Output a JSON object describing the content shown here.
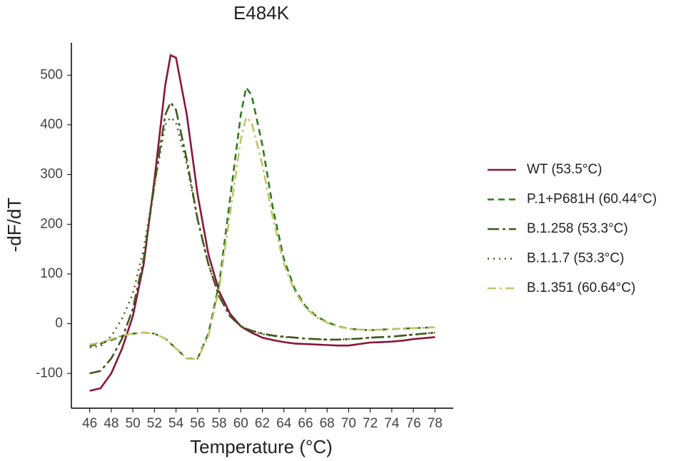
{
  "chart_data": {
    "type": "line",
    "title": "E484K",
    "x_label": "Temperature (°C)",
    "y_label": "-dF/dT",
    "xlim": [
      44.3,
      79.7
    ],
    "ylim": [
      -170,
      565
    ],
    "xticks": [
      46,
      48,
      50,
      52,
      54,
      56,
      58,
      60,
      62,
      64,
      66,
      68,
      70,
      72,
      74,
      76,
      78
    ],
    "yticks": [
      -100,
      0,
      100,
      200,
      300,
      400,
      500
    ],
    "grid": false,
    "legend": "right",
    "x": [
      46,
      47,
      48,
      49,
      50,
      51,
      52,
      53,
      53.5,
      54,
      55,
      56,
      57,
      58,
      59,
      60,
      60.5,
      61,
      62,
      63,
      64,
      65,
      66,
      67,
      68,
      69,
      70,
      71,
      72,
      73,
      74,
      75,
      76,
      77,
      78
    ],
    "series": [
      {
        "name": "WT (53.5°C)",
        "color": "#8b1538",
        "dash": "none",
        "values": [
          -135,
          -130,
          -100,
          -50,
          15,
          120,
          290,
          480,
          540,
          535,
          420,
          260,
          140,
          65,
          20,
          -5,
          -12,
          -18,
          -28,
          -33,
          -37,
          -40,
          -41,
          -42,
          -43,
          -44,
          -44,
          -41,
          -38,
          -37,
          -36,
          -34,
          -31,
          -29,
          -27
        ]
      },
      {
        "name": "P.1+P681H (60.44°C)",
        "color": "#2f7a1f",
        "dash": "9,6",
        "values": [
          -45,
          -40,
          -33,
          -25,
          -20,
          -18,
          -20,
          -30,
          -40,
          -50,
          -70,
          -70,
          -20,
          80,
          250,
          420,
          475,
          460,
          360,
          230,
          130,
          70,
          35,
          15,
          3,
          -5,
          -10,
          -12,
          -13,
          -12,
          -11,
          -10,
          -9,
          -8,
          -7
        ]
      },
      {
        "name": "B.1.258 (53.3°C)",
        "color": "#3d5a1c",
        "dash": "16,5,4,5",
        "values": [
          -100,
          -95,
          -70,
          -30,
          30,
          130,
          280,
          420,
          445,
          430,
          330,
          210,
          120,
          55,
          15,
          -5,
          -10,
          -14,
          -20,
          -24,
          -26,
          -28,
          -30,
          -31,
          -32,
          -32,
          -31,
          -30,
          -28,
          -27,
          -26,
          -24,
          -22,
          -20,
          -18
        ]
      },
      {
        "name": "B.1.1.7 (53.3°C)",
        "color": "#4a5a1e",
        "dash": "2,6",
        "values": [
          -48,
          -45,
          -25,
          10,
          60,
          150,
          280,
          400,
          415,
          405,
          320,
          210,
          120,
          55,
          15,
          -5,
          -10,
          -15,
          -21,
          -25,
          -27,
          -28,
          -30,
          -31,
          -32,
          -32,
          -31,
          -30,
          -28,
          -27,
          -26,
          -24,
          -22,
          -20,
          -18
        ]
      },
      {
        "name": "B.1.351 (60.64°C)",
        "color": "#c4c46a",
        "dash": "12,5,3,5",
        "values": [
          -42,
          -38,
          -31,
          -24,
          -20,
          -18,
          -20,
          -30,
          -40,
          -50,
          -70,
          -72,
          -25,
          70,
          220,
          370,
          415,
          405,
          320,
          210,
          120,
          65,
          32,
          13,
          2,
          -6,
          -10,
          -12,
          -13,
          -12,
          -11,
          -10,
          -9,
          -8,
          -7
        ]
      }
    ]
  }
}
